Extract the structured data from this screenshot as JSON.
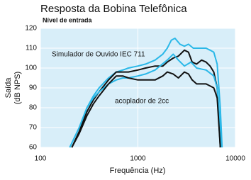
{
  "chart_data": {
    "type": "line",
    "title": "Resposta da Bobina Telefônica",
    "subtitle": "Nível de entrada",
    "xlabel": "Frequência (Hz)",
    "ylabel": [
      "Saída",
      "(dB NPS)"
    ],
    "annotations": [
      "Simulador de Ouvido IEC 711",
      "acoplador de 2cc"
    ],
    "xscale": "log",
    "xlim": [
      100,
      10000
    ],
    "xticks": [
      100,
      1000,
      10000
    ],
    "ylim": [
      60,
      120
    ],
    "yticks": [
      60,
      70,
      80,
      90,
      100,
      110,
      120
    ],
    "grid": true,
    "background": "#d8eef9",
    "series": [
      {
        "color": "#2bb8e8",
        "x": [
          200,
          250,
          300,
          350,
          400,
          500,
          600,
          700,
          800,
          1000,
          1200,
          1500,
          1800,
          2000,
          2200,
          2400,
          2700,
          3000,
          3300,
          3700,
          4200,
          5000,
          5500,
          6000,
          6500,
          7000,
          7300
        ],
        "values": [
          60,
          70,
          80,
          86,
          90,
          95,
          98,
          99,
          100,
          101,
          102,
          104,
          107,
          110,
          114,
          115,
          112,
          111,
          112,
          110,
          110,
          110,
          109,
          108,
          102,
          80,
          60
        ]
      },
      {
        "color": "#111111",
        "x": [
          210,
          250,
          300,
          350,
          400,
          500,
          600,
          700,
          800,
          1000,
          1200,
          1500,
          1800,
          2000,
          2300,
          2600,
          3000,
          3300,
          3600,
          4000,
          4500,
          5000,
          5500,
          6000,
          6500,
          7000
        ],
        "values": [
          60,
          68,
          78,
          84,
          88,
          94,
          98,
          98,
          98,
          99,
          100,
          101,
          101,
          103,
          105,
          106,
          109,
          108,
          103,
          102,
          104,
          103,
          101,
          98,
          90,
          60
        ]
      },
      {
        "color": "#2bb8e8",
        "x": [
          200,
          250,
          300,
          350,
          400,
          500,
          600,
          700,
          800,
          1000,
          1200,
          1500,
          2000,
          2300,
          2600,
          3000,
          3500,
          4000,
          5000,
          6000,
          6500,
          7000,
          7200
        ],
        "values": [
          60,
          70,
          80,
          85,
          88,
          92,
          94,
          95,
          95,
          96,
          97,
          99,
          104,
          107,
          104,
          101,
          103,
          100,
          99,
          96,
          90,
          70,
          60
        ]
      },
      {
        "color": "#111111",
        "x": [
          210,
          250,
          300,
          350,
          400,
          500,
          600,
          700,
          800,
          1000,
          1200,
          1500,
          1800,
          2000,
          2300,
          2600,
          3000,
          3300,
          3600,
          4000,
          5000,
          6000,
          6500,
          7000
        ],
        "values": [
          60,
          67,
          76,
          82,
          86,
          92,
          96,
          96,
          95,
          94,
          94,
          94,
          96,
          98,
          97,
          95,
          98,
          97,
          94,
          92,
          92,
          90,
          85,
          60
        ]
      }
    ]
  }
}
